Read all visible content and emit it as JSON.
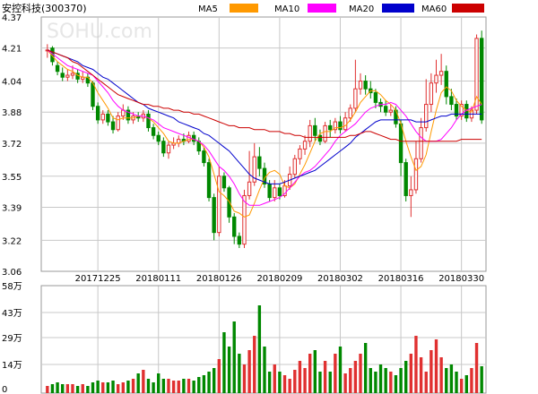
{
  "header": {
    "stock_name": "安控科技(300370)",
    "legend": [
      {
        "label": "MA5",
        "color": "#ff9900"
      },
      {
        "label": "MA10",
        "color": "#ff00ff"
      },
      {
        "label": "MA20",
        "color": "#0000ff"
      },
      {
        "label": "MA60",
        "color": "#cc0000"
      }
    ]
  },
  "watermark": "SOHU.com",
  "colors": {
    "up": "#e03030",
    "down": "#008800",
    "grid": "#c8c8c8"
  },
  "chart_data": [
    {
      "type": "candlestick",
      "yticks": [
        "4.37",
        "4.21",
        "4.04",
        "3.88",
        "3.72",
        "3.55",
        "3.39",
        "3.22",
        "3.06"
      ],
      "ylim": [
        3.06,
        4.37
      ],
      "xticks": [
        {
          "label": "20171225",
          "index": 10
        },
        {
          "label": "20180111",
          "index": 22
        },
        {
          "label": "20180126",
          "index": 34
        },
        {
          "label": "20180209",
          "index": 46
        },
        {
          "label": "20180302",
          "index": 58
        },
        {
          "label": "20180316",
          "index": 70
        },
        {
          "label": "20180330",
          "index": 82
        }
      ],
      "candles": [
        [
          4.2,
          4.2,
          4.23,
          4.16
        ],
        [
          4.21,
          4.14,
          4.22,
          4.12
        ],
        [
          4.12,
          4.09,
          4.14,
          4.07
        ],
        [
          4.08,
          4.06,
          4.11,
          4.04
        ],
        [
          4.06,
          4.07,
          4.1,
          4.04
        ],
        [
          4.07,
          4.08,
          4.12,
          4.05
        ],
        [
          4.08,
          4.05,
          4.1,
          4.03
        ],
        [
          4.05,
          4.06,
          4.09,
          4.03
        ],
        [
          4.06,
          4.03,
          4.08,
          4.01
        ],
        [
          4.03,
          3.91,
          4.04,
          3.89
        ],
        [
          3.91,
          3.84,
          3.93,
          3.82
        ],
        [
          3.84,
          3.87,
          3.89,
          3.82
        ],
        [
          3.87,
          3.83,
          3.89,
          3.81
        ],
        [
          3.83,
          3.79,
          3.86,
          3.77
        ],
        [
          3.79,
          3.86,
          3.88,
          3.78
        ],
        [
          3.86,
          3.89,
          3.92,
          3.84
        ],
        [
          3.89,
          3.84,
          3.91,
          3.82
        ],
        [
          3.84,
          3.86,
          3.88,
          3.82
        ],
        [
          3.86,
          3.85,
          3.88,
          3.83
        ],
        [
          3.85,
          3.87,
          3.89,
          3.83
        ],
        [
          3.87,
          3.8,
          3.89,
          3.78
        ],
        [
          3.8,
          3.76,
          3.82,
          3.74
        ],
        [
          3.76,
          3.73,
          3.78,
          3.71
        ],
        [
          3.73,
          3.67,
          3.75,
          3.65
        ],
        [
          3.67,
          3.71,
          3.73,
          3.64
        ],
        [
          3.71,
          3.72,
          3.75,
          3.69
        ],
        [
          3.72,
          3.74,
          3.76,
          3.7
        ],
        [
          3.74,
          3.73,
          3.77,
          3.71
        ],
        [
          3.73,
          3.76,
          3.78,
          3.72
        ],
        [
          3.76,
          3.73,
          3.78,
          3.71
        ],
        [
          3.73,
          3.68,
          3.75,
          3.66
        ],
        [
          3.68,
          3.62,
          3.7,
          3.6
        ],
        [
          3.62,
          3.44,
          3.64,
          3.42
        ],
        [
          3.44,
          3.26,
          3.46,
          3.22
        ],
        [
          3.26,
          3.55,
          3.6,
          3.24
        ],
        [
          3.55,
          3.49,
          3.57,
          3.47
        ],
        [
          3.49,
          3.34,
          3.5,
          3.31
        ],
        [
          3.34,
          3.24,
          3.36,
          3.2
        ],
        [
          3.24,
          3.2,
          3.26,
          3.18
        ],
        [
          3.2,
          3.45,
          3.48,
          3.18
        ],
        [
          3.45,
          3.52,
          3.68,
          3.43
        ],
        [
          3.52,
          3.65,
          3.72,
          3.5
        ],
        [
          3.65,
          3.59,
          3.7,
          3.55
        ],
        [
          3.59,
          3.51,
          3.62,
          3.49
        ],
        [
          3.51,
          3.44,
          3.53,
          3.42
        ],
        [
          3.44,
          3.49,
          3.53,
          3.42
        ],
        [
          3.49,
          3.45,
          3.51,
          3.43
        ],
        [
          3.45,
          3.5,
          3.53,
          3.44
        ],
        [
          3.5,
          3.56,
          3.6,
          3.48
        ],
        [
          3.56,
          3.64,
          3.66,
          3.54
        ],
        [
          3.64,
          3.69,
          3.71,
          3.61
        ],
        [
          3.69,
          3.73,
          3.76,
          3.66
        ],
        [
          3.73,
          3.81,
          3.84,
          3.7
        ],
        [
          3.81,
          3.76,
          3.85,
          3.73
        ],
        [
          3.76,
          3.73,
          3.79,
          3.71
        ],
        [
          3.73,
          3.81,
          3.83,
          3.72
        ],
        [
          3.81,
          3.79,
          3.84,
          3.75
        ],
        [
          3.79,
          3.83,
          3.85,
          3.77
        ],
        [
          3.83,
          3.79,
          3.86,
          3.77
        ],
        [
          3.79,
          3.85,
          3.88,
          3.78
        ],
        [
          3.85,
          3.9,
          3.92,
          3.83
        ],
        [
          3.9,
          4.0,
          4.15,
          3.88
        ],
        [
          4.0,
          4.04,
          4.08,
          3.97
        ],
        [
          4.04,
          4.0,
          4.07,
          3.97
        ],
        [
          4.0,
          3.98,
          4.04,
          3.95
        ],
        [
          3.98,
          3.93,
          4.0,
          3.9
        ],
        [
          3.93,
          3.91,
          3.95,
          3.88
        ],
        [
          3.91,
          3.88,
          3.94,
          3.86
        ],
        [
          3.88,
          3.89,
          3.92,
          3.86
        ],
        [
          3.89,
          3.82,
          3.91,
          3.8
        ],
        [
          3.82,
          3.62,
          3.84,
          3.55
        ],
        [
          3.62,
          3.45,
          3.64,
          3.42
        ],
        [
          3.45,
          3.48,
          3.55,
          3.34
        ],
        [
          3.48,
          3.64,
          3.73,
          3.46
        ],
        [
          3.64,
          3.8,
          3.85,
          3.62
        ],
        [
          3.8,
          3.92,
          4.05,
          3.78
        ],
        [
          3.92,
          4.03,
          4.08,
          3.88
        ],
        [
          4.03,
          4.07,
          4.15,
          3.98
        ],
        [
          4.07,
          4.09,
          4.18,
          4.02
        ],
        [
          4.09,
          3.96,
          4.12,
          3.92
        ],
        [
          3.96,
          3.92,
          4.0,
          3.89
        ],
        [
          3.92,
          3.86,
          3.95,
          3.84
        ],
        [
          3.86,
          3.92,
          3.94,
          3.84
        ],
        [
          3.92,
          3.85,
          3.94,
          3.83
        ],
        [
          3.85,
          3.89,
          3.91,
          3.83
        ],
        [
          3.89,
          4.26,
          4.28,
          3.87
        ],
        [
          4.26,
          3.84,
          4.3,
          3.82
        ]
      ],
      "ma5": [
        4.2,
        4.17,
        4.14,
        4.12,
        4.1,
        4.09,
        4.07,
        4.06,
        4.06,
        4.03,
        3.98,
        3.94,
        3.9,
        3.85,
        3.84,
        3.85,
        3.85,
        3.85,
        3.86,
        3.86,
        3.85,
        3.83,
        3.8,
        3.77,
        3.73,
        3.72,
        3.72,
        3.73,
        3.74,
        3.74,
        3.73,
        3.7,
        3.65,
        3.56,
        3.47,
        3.45,
        3.42,
        3.37,
        3.36,
        3.34,
        3.35,
        3.41,
        3.48,
        3.54,
        3.57,
        3.58,
        3.56,
        3.5,
        3.49,
        3.51,
        3.56,
        3.61,
        3.67,
        3.73,
        3.77,
        3.78,
        3.78,
        3.8,
        3.8,
        3.81,
        3.84,
        3.88,
        3.93,
        3.96,
        3.99,
        3.99,
        3.97,
        3.94,
        3.92,
        3.89,
        3.82,
        3.73,
        3.65,
        3.58,
        3.6,
        3.66,
        3.78,
        3.89,
        3.98,
        4.01,
        3.99,
        3.94,
        3.91,
        3.89,
        3.88,
        3.96,
        3.92
      ],
      "ma10": [
        4.2,
        4.18,
        4.16,
        4.14,
        4.12,
        4.11,
        4.1,
        4.09,
        4.08,
        4.07,
        4.04,
        4.01,
        3.98,
        3.94,
        3.91,
        3.89,
        3.88,
        3.87,
        3.86,
        3.86,
        3.85,
        3.84,
        3.82,
        3.8,
        3.79,
        3.78,
        3.77,
        3.76,
        3.75,
        3.74,
        3.73,
        3.71,
        3.68,
        3.64,
        3.6,
        3.58,
        3.55,
        3.51,
        3.46,
        3.42,
        3.4,
        3.4,
        3.4,
        3.41,
        3.42,
        3.43,
        3.44,
        3.46,
        3.49,
        3.52,
        3.55,
        3.57,
        3.58,
        3.6,
        3.63,
        3.66,
        3.69,
        3.73,
        3.76,
        3.78,
        3.8,
        3.82,
        3.85,
        3.88,
        3.9,
        3.91,
        3.92,
        3.92,
        3.93,
        3.92,
        3.89,
        3.86,
        3.82,
        3.78,
        3.75,
        3.73,
        3.73,
        3.73,
        3.74,
        3.77,
        3.8,
        3.84,
        3.87,
        3.89,
        3.9,
        3.91,
        3.92
      ],
      "ma20": [
        4.2,
        4.19,
        4.18,
        4.17,
        4.16,
        4.15,
        4.14,
        4.12,
        4.11,
        4.1,
        4.08,
        4.06,
        4.05,
        4.03,
        4.01,
        3.99,
        3.97,
        3.95,
        3.93,
        3.92,
        3.9,
        3.89,
        3.88,
        3.87,
        3.86,
        3.85,
        3.83,
        3.82,
        3.81,
        3.8,
        3.79,
        3.77,
        3.76,
        3.74,
        3.72,
        3.7,
        3.68,
        3.65,
        3.62,
        3.59,
        3.56,
        3.54,
        3.53,
        3.52,
        3.51,
        3.51,
        3.51,
        3.52,
        3.53,
        3.54,
        3.55,
        3.56,
        3.57,
        3.58,
        3.6,
        3.62,
        3.64,
        3.66,
        3.68,
        3.7,
        3.72,
        3.75,
        3.77,
        3.79,
        3.81,
        3.83,
        3.84,
        3.84,
        3.84,
        3.84,
        3.84,
        3.84,
        3.84,
        3.83,
        3.83,
        3.83,
        3.84,
        3.85,
        3.86,
        3.86,
        3.87,
        3.87,
        3.87,
        3.87,
        3.87,
        3.87,
        3.87
      ],
      "ma60": [
        4.2,
        4.19,
        4.18,
        4.17,
        4.16,
        4.14,
        4.13,
        4.11,
        4.09,
        4.07,
        4.05,
        4.03,
        4.01,
        3.99,
        3.97,
        3.96,
        3.95,
        3.94,
        3.93,
        3.92,
        3.92,
        3.91,
        3.91,
        3.9,
        3.9,
        3.89,
        3.89,
        3.88,
        3.88,
        3.87,
        3.87,
        3.86,
        3.85,
        3.84,
        3.83,
        3.82,
        3.81,
        3.81,
        3.8,
        3.8,
        3.8,
        3.79,
        3.79,
        3.79,
        3.78,
        3.78,
        3.78,
        3.77,
        3.77,
        3.76,
        3.76,
        3.75,
        3.75,
        3.75,
        3.75,
        3.75,
        3.75,
        3.75,
        3.75,
        3.75,
        3.76,
        3.76,
        3.77,
        3.78,
        3.78,
        3.77,
        3.76,
        3.75,
        3.74,
        3.74,
        3.73,
        3.73,
        3.73,
        3.73,
        3.73,
        3.73,
        3.73,
        3.73,
        3.73,
        3.73,
        3.73,
        3.73,
        3.74,
        3.74,
        3.74,
        3.74,
        3.74
      ]
    },
    {
      "type": "bar",
      "yticks": [
        "58万",
        "43万",
        "29万",
        "14万",
        "0"
      ],
      "ylim": [
        0,
        58
      ],
      "volumes": [
        2,
        3,
        4,
        3,
        3,
        3,
        2,
        3,
        2,
        4,
        5,
        4,
        4,
        5,
        3,
        4,
        5,
        6,
        9,
        11,
        6,
        4,
        9,
        6,
        6,
        5,
        5,
        6,
        6,
        5,
        7,
        8,
        10,
        12,
        17,
        32,
        24,
        38,
        20,
        14,
        22,
        30,
        47,
        24,
        10,
        14,
        10,
        8,
        6,
        11,
        16,
        12,
        20,
        22,
        10,
        16,
        10,
        20,
        24,
        9,
        12,
        16,
        20,
        26,
        12,
        10,
        14,
        12,
        10,
        8,
        12,
        16,
        20,
        30,
        18,
        10,
        22,
        28,
        18,
        12,
        14,
        10,
        6,
        8,
        12,
        26,
        13
      ]
    }
  ]
}
